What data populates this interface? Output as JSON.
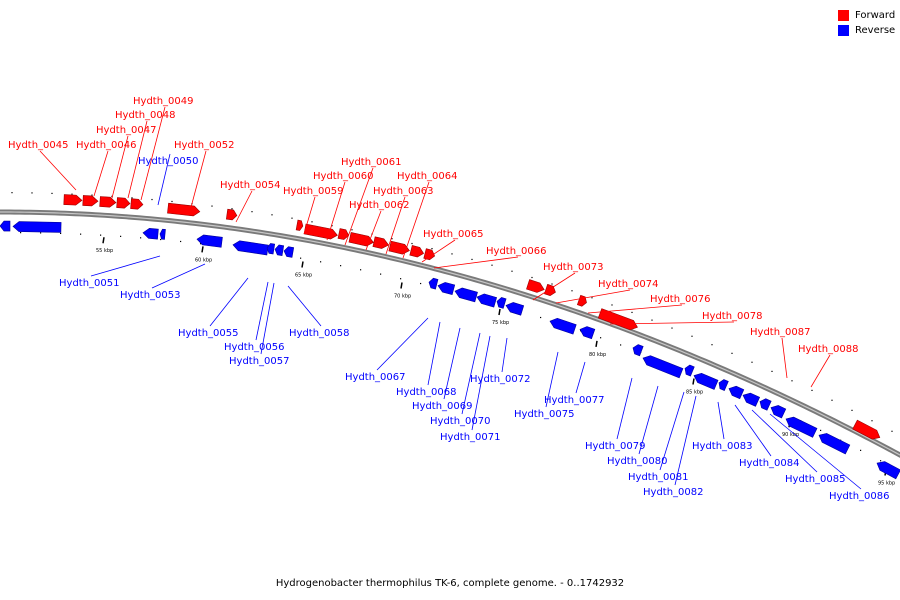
{
  "legend": {
    "items": [
      {
        "label": "Forward",
        "color": "#ff0000"
      },
      {
        "label": "Reverse",
        "color": "#0000ff"
      }
    ]
  },
  "caption": "Hydrogenobacter thermophilus TK-6, complete genome. - 0..1742932",
  "scale_labels": [
    "55 kbp",
    "60 kbp",
    "65 kbp",
    "70 kbp",
    "75 kbp",
    "80 kbp",
    "85 kbp",
    "90 kbp",
    "95 kbp"
  ],
  "genes": [
    {
      "name": "Hydth_0045",
      "strand": "forward"
    },
    {
      "name": "Hydth_0046",
      "strand": "forward"
    },
    {
      "name": "Hydth_0047",
      "strand": "forward"
    },
    {
      "name": "Hydth_0048",
      "strand": "forward"
    },
    {
      "name": "Hydth_0049",
      "strand": "forward"
    },
    {
      "name": "Hydth_0050",
      "strand": "reverse"
    },
    {
      "name": "Hydth_0051",
      "strand": "reverse"
    },
    {
      "name": "Hydth_0052",
      "strand": "forward"
    },
    {
      "name": "Hydth_0053",
      "strand": "reverse"
    },
    {
      "name": "Hydth_0054",
      "strand": "forward"
    },
    {
      "name": "Hydth_0055",
      "strand": "reverse"
    },
    {
      "name": "Hydth_0056",
      "strand": "reverse"
    },
    {
      "name": "Hydth_0057",
      "strand": "reverse"
    },
    {
      "name": "Hydth_0058",
      "strand": "reverse"
    },
    {
      "name": "Hydth_0059",
      "strand": "forward"
    },
    {
      "name": "Hydth_0060",
      "strand": "forward"
    },
    {
      "name": "Hydth_0061",
      "strand": "forward"
    },
    {
      "name": "Hydth_0062",
      "strand": "forward"
    },
    {
      "name": "Hydth_0063",
      "strand": "forward"
    },
    {
      "name": "Hydth_0064",
      "strand": "forward"
    },
    {
      "name": "Hydth_0065",
      "strand": "forward"
    },
    {
      "name": "Hydth_0066",
      "strand": "forward"
    },
    {
      "name": "Hydth_0067",
      "strand": "reverse"
    },
    {
      "name": "Hydth_0068",
      "strand": "reverse"
    },
    {
      "name": "Hydth_0069",
      "strand": "reverse"
    },
    {
      "name": "Hydth_0070",
      "strand": "reverse"
    },
    {
      "name": "Hydth_0071",
      "strand": "reverse"
    },
    {
      "name": "Hydth_0072",
      "strand": "reverse"
    },
    {
      "name": "Hydth_0073",
      "strand": "forward"
    },
    {
      "name": "Hydth_0074",
      "strand": "forward"
    },
    {
      "name": "Hydth_0075",
      "strand": "reverse"
    },
    {
      "name": "Hydth_0076",
      "strand": "forward"
    },
    {
      "name": "Hydth_0077",
      "strand": "reverse"
    },
    {
      "name": "Hydth_0078",
      "strand": "forward"
    },
    {
      "name": "Hydth_0079",
      "strand": "reverse"
    },
    {
      "name": "Hydth_0080",
      "strand": "reverse"
    },
    {
      "name": "Hydth_0081",
      "strand": "reverse"
    },
    {
      "name": "Hydth_0082",
      "strand": "reverse"
    },
    {
      "name": "Hydth_0083",
      "strand": "reverse"
    },
    {
      "name": "Hydth_0084",
      "strand": "reverse"
    },
    {
      "name": "Hydth_0085",
      "strand": "reverse"
    },
    {
      "name": "Hydth_0086",
      "strand": "reverse"
    },
    {
      "name": "Hydth_0087",
      "strand": "forward"
    },
    {
      "name": "Hydth_0088",
      "strand": "forward"
    }
  ]
}
